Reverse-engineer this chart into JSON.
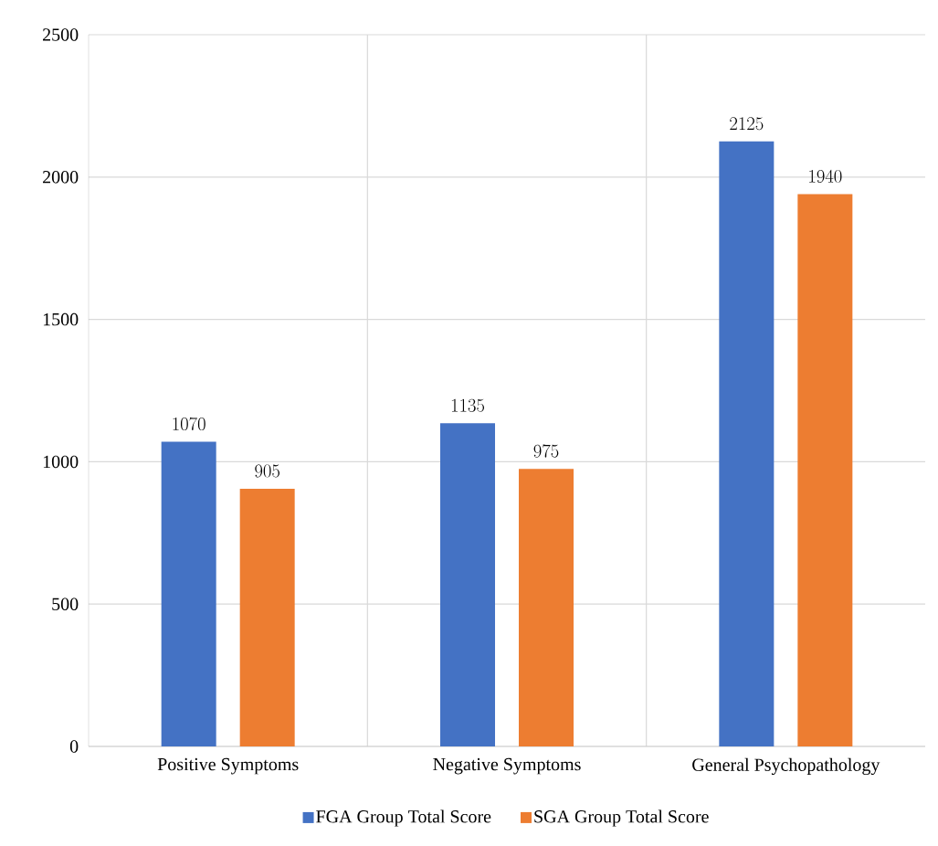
{
  "chart_data": {
    "type": "bar",
    "categories": [
      "Positive Symptoms",
      "Negative Symptoms",
      "General Psychopathology"
    ],
    "series": [
      {
        "name": "FGA Group Total Score",
        "color": "#4472c4",
        "values": [
          1070,
          1135,
          2125
        ]
      },
      {
        "name": "SGA Group Total Score",
        "color": "#ed7d31",
        "values": [
          905,
          975,
          1940
        ]
      }
    ],
    "ylim": [
      0,
      2500
    ],
    "yticks": [
      0,
      500,
      1000,
      1500,
      2000,
      2500
    ],
    "grid": true,
    "legend": "bottom",
    "data_labels": true
  }
}
